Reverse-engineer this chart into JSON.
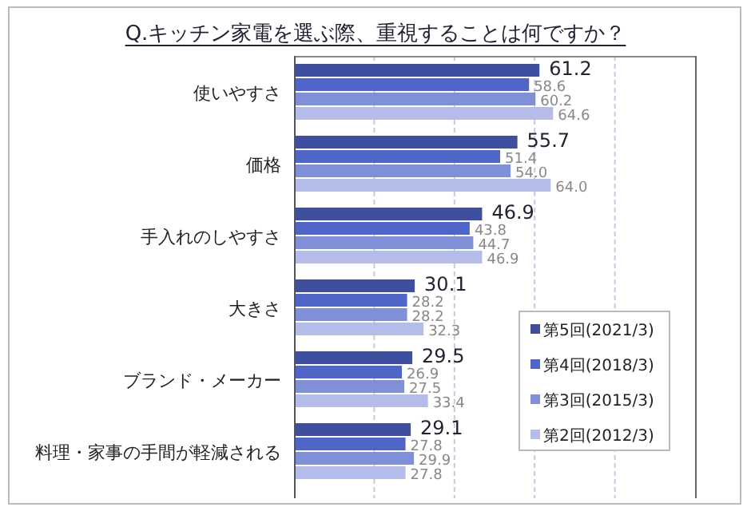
{
  "chart_data": {
    "type": "bar",
    "orientation": "horizontal",
    "title": "Q.キッチン家電を選ぶ際、重視することは何ですか？",
    "categories": [
      "使いやすさ",
      "価格",
      "手入れのしやすさ",
      "大きさ",
      "ブランド・メーカー",
      "料理・家事の手間が軽減される"
    ],
    "series": [
      {
        "name": "第5回(2021/3)",
        "color": "#3d4f9e",
        "values": [
          61.2,
          55.7,
          46.9,
          30.1,
          29.5,
          29.1
        ],
        "value_labels": [
          "61.2",
          "55.7",
          "46.9",
          "30.1",
          "29.5",
          "29.1"
        ]
      },
      {
        "name": "第4回(2018/3)",
        "color": "#4f66c8",
        "values": [
          58.6,
          51.4,
          43.8,
          28.2,
          26.9,
          27.8
        ],
        "value_labels": [
          "58.6",
          "51.4",
          "43.8",
          "28.2",
          "26.9",
          "27.8"
        ]
      },
      {
        "name": "第3回(2015/3)",
        "color": "#7f8fd8",
        "values": [
          60.2,
          54.0,
          44.7,
          28.2,
          27.5,
          29.9
        ],
        "value_labels": [
          "60.2",
          "54.0",
          "44.7",
          "28.2",
          "27.5",
          "29.9"
        ]
      },
      {
        "name": "第2回(2012/3)",
        "color": "#b4bde9",
        "values": [
          64.6,
          64.0,
          46.9,
          32.3,
          33.4,
          27.8
        ],
        "value_labels": [
          "64.6",
          "64.0",
          "46.9",
          "32.3",
          "33.4",
          "27.8"
        ]
      }
    ],
    "xlim": [
      0,
      100
    ],
    "xticks": [
      {
        "value": 20,
        "label": null
      },
      {
        "value": 40,
        "label": null
      },
      {
        "value": 60,
        "label": null
      },
      {
        "value": 80,
        "label": null
      }
    ],
    "grid": "x",
    "legend": "bottom right",
    "tick_labels": "y"
  }
}
